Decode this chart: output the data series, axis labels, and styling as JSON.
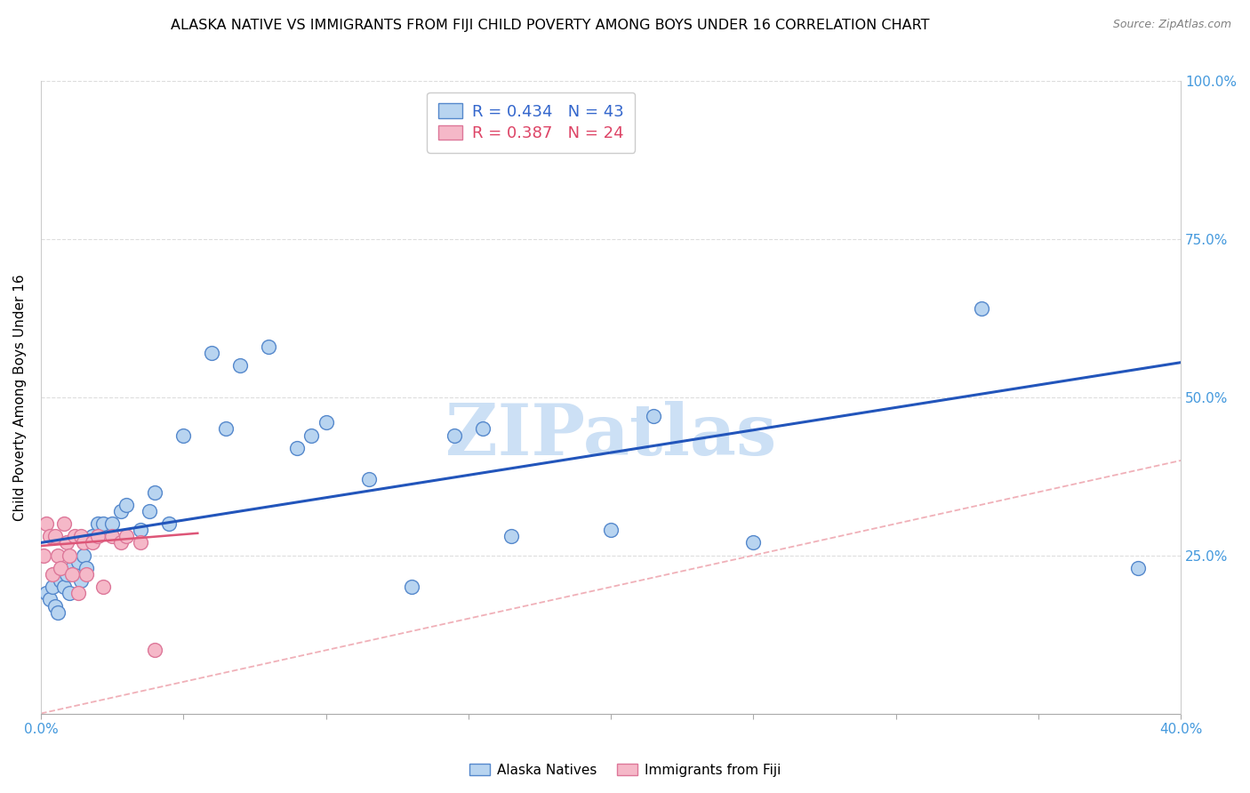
{
  "title": "ALASKA NATIVE VS IMMIGRANTS FROM FIJI CHILD POVERTY AMONG BOYS UNDER 16 CORRELATION CHART",
  "source": "Source: ZipAtlas.com",
  "ylabel": "Child Poverty Among Boys Under 16",
  "xlim": [
    0.0,
    0.4
  ],
  "ylim": [
    0.0,
    1.0
  ],
  "xticks": [
    0.0,
    0.05,
    0.1,
    0.15,
    0.2,
    0.25,
    0.3,
    0.35,
    0.4
  ],
  "ytick_positions": [
    0.0,
    0.25,
    0.5,
    0.75,
    1.0
  ],
  "yticklabels_right": [
    "",
    "25.0%",
    "50.0%",
    "75.0%",
    "100.0%"
  ],
  "alaska_color": "#b8d4f0",
  "alaska_edge": "#5588cc",
  "fiji_color": "#f5b8c8",
  "fiji_edge": "#dd7799",
  "line_blue_color": "#2255bb",
  "line_pink_color": "#dd5577",
  "ref_line_color": "#f0b0b8",
  "grid_color": "#dddddd",
  "legend_r_alaska": "0.434",
  "legend_n_alaska": "43",
  "legend_r_fiji": "0.387",
  "legend_n_fiji": "24",
  "watermark": "ZIPatlas",
  "watermark_color": "#cce0f5",
  "blue_line_x0": 0.0,
  "blue_line_y0": 0.27,
  "blue_line_x1": 0.4,
  "blue_line_y1": 0.555,
  "pink_line_x0": 0.0,
  "pink_line_y0": 0.265,
  "pink_line_x1": 0.055,
  "pink_line_y1": 0.285,
  "alaska_x": [
    0.002,
    0.003,
    0.004,
    0.005,
    0.006,
    0.007,
    0.008,
    0.009,
    0.01,
    0.011,
    0.012,
    0.013,
    0.014,
    0.015,
    0.016,
    0.018,
    0.02,
    0.022,
    0.025,
    0.028,
    0.03,
    0.035,
    0.038,
    0.04,
    0.045,
    0.05,
    0.06,
    0.065,
    0.07,
    0.08,
    0.09,
    0.095,
    0.1,
    0.115,
    0.13,
    0.145,
    0.155,
    0.165,
    0.2,
    0.215,
    0.25,
    0.33,
    0.385
  ],
  "alaska_y": [
    0.19,
    0.18,
    0.2,
    0.17,
    0.16,
    0.21,
    0.2,
    0.22,
    0.19,
    0.23,
    0.22,
    0.24,
    0.21,
    0.25,
    0.23,
    0.28,
    0.3,
    0.3,
    0.3,
    0.32,
    0.33,
    0.29,
    0.32,
    0.35,
    0.3,
    0.44,
    0.57,
    0.45,
    0.55,
    0.58,
    0.42,
    0.44,
    0.46,
    0.37,
    0.2,
    0.44,
    0.45,
    0.28,
    0.29,
    0.47,
    0.27,
    0.64,
    0.23
  ],
  "fiji_x": [
    0.001,
    0.002,
    0.003,
    0.004,
    0.005,
    0.006,
    0.007,
    0.008,
    0.009,
    0.01,
    0.011,
    0.012,
    0.013,
    0.014,
    0.015,
    0.016,
    0.018,
    0.02,
    0.022,
    0.025,
    0.028,
    0.03,
    0.035,
    0.04
  ],
  "fiji_y": [
    0.25,
    0.3,
    0.28,
    0.22,
    0.28,
    0.25,
    0.23,
    0.3,
    0.27,
    0.25,
    0.22,
    0.28,
    0.19,
    0.28,
    0.27,
    0.22,
    0.27,
    0.28,
    0.2,
    0.28,
    0.27,
    0.28,
    0.27,
    0.1
  ],
  "marker_size": 130,
  "title_fontsize": 11.5,
  "tick_fontsize": 11,
  "legend_fontsize": 13,
  "tick_color": "#4499dd",
  "legend_text_blue": "#3366cc",
  "legend_text_pink": "#dd4466"
}
